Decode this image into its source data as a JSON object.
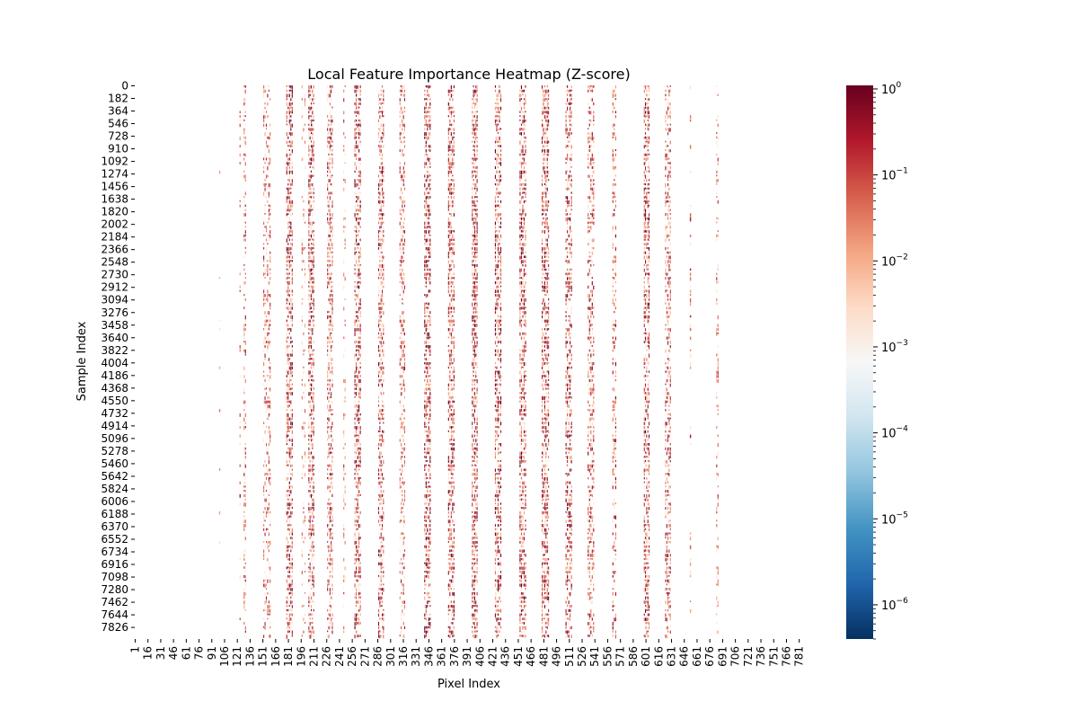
{
  "chart_data": {
    "type": "heatmap",
    "title": "Local Feature Importance Heatmap (Z-score)",
    "xlabel": "Pixel Index",
    "ylabel": "Sample Index",
    "x_tick_labels": [
      "1",
      "16",
      "31",
      "46",
      "61",
      "76",
      "91",
      "106",
      "121",
      "136",
      "151",
      "166",
      "181",
      "196",
      "211",
      "226",
      "241",
      "256",
      "271",
      "286",
      "301",
      "316",
      "331",
      "346",
      "361",
      "376",
      "391",
      "406",
      "421",
      "436",
      "451",
      "466",
      "481",
      "496",
      "511",
      "526",
      "541",
      "556",
      "571",
      "586",
      "601",
      "616",
      "631",
      "646",
      "661",
      "676",
      "691",
      "706",
      "721",
      "736",
      "751",
      "766",
      "781"
    ],
    "y_tick_labels": [
      "0",
      "182",
      "364",
      "546",
      "728",
      "910",
      "1092",
      "1274",
      "1456",
      "1638",
      "1820",
      "2002",
      "2184",
      "2366",
      "2548",
      "2730",
      "2912",
      "3094",
      "3276",
      "3458",
      "3640",
      "3822",
      "4004",
      "4186",
      "4368",
      "4550",
      "4732",
      "4914",
      "5096",
      "5278",
      "5460",
      "5642",
      "5824",
      "6006",
      "6188",
      "6370",
      "6552",
      "6734",
      "6916",
      "7098",
      "7280",
      "7462",
      "7644",
      "7826"
    ],
    "x_range": [
      1,
      784
    ],
    "y_range": [
      0,
      8000
    ],
    "colormap": "RdBu_r",
    "color_scale": "log",
    "color_range": [
      4e-07,
      1.1
    ],
    "colorbar": {
      "ticks": [
        {
          "value": 1,
          "label": "10^0"
        },
        {
          "value": 0.1,
          "label": "10^-1"
        },
        {
          "value": 0.01,
          "label": "10^-2"
        },
        {
          "value": 0.001,
          "label": "10^-3"
        },
        {
          "value": 0.0001,
          "label": "10^-4"
        },
        {
          "value": 1e-05,
          "label": "10^-5"
        },
        {
          "value": 1e-06,
          "label": "10^-6"
        }
      ]
    },
    "feature_bands": [
      {
        "start": 100,
        "end": 101,
        "intensity": 0.05
      },
      {
        "start": 124,
        "end": 125,
        "intensity": 0.25
      },
      {
        "start": 129,
        "end": 131,
        "intensity": 0.6
      },
      {
        "start": 152,
        "end": 160,
        "intensity": 0.45
      },
      {
        "start": 179,
        "end": 186,
        "intensity": 0.85
      },
      {
        "start": 197,
        "end": 201,
        "intensity": 0.2
      },
      {
        "start": 205,
        "end": 211,
        "intensity": 0.9
      },
      {
        "start": 227,
        "end": 233,
        "intensity": 0.75
      },
      {
        "start": 246,
        "end": 248,
        "intensity": 0.3
      },
      {
        "start": 259,
        "end": 266,
        "intensity": 0.8
      },
      {
        "start": 287,
        "end": 293,
        "intensity": 0.75
      },
      {
        "start": 312,
        "end": 318,
        "intensity": 0.55
      },
      {
        "start": 341,
        "end": 348,
        "intensity": 0.9
      },
      {
        "start": 369,
        "end": 376,
        "intensity": 0.85
      },
      {
        "start": 397,
        "end": 403,
        "intensity": 0.95
      },
      {
        "start": 424,
        "end": 431,
        "intensity": 0.9
      },
      {
        "start": 453,
        "end": 460,
        "intensity": 0.85
      },
      {
        "start": 479,
        "end": 487,
        "intensity": 0.85
      },
      {
        "start": 507,
        "end": 514,
        "intensity": 0.8
      },
      {
        "start": 533,
        "end": 540,
        "intensity": 0.65
      },
      {
        "start": 562,
        "end": 566,
        "intensity": 0.55
      },
      {
        "start": 599,
        "end": 605,
        "intensity": 0.85
      },
      {
        "start": 624,
        "end": 630,
        "intensity": 0.7
      },
      {
        "start": 653,
        "end": 654,
        "intensity": 0.25
      },
      {
        "start": 684,
        "end": 686,
        "intensity": 0.35
      }
    ]
  }
}
